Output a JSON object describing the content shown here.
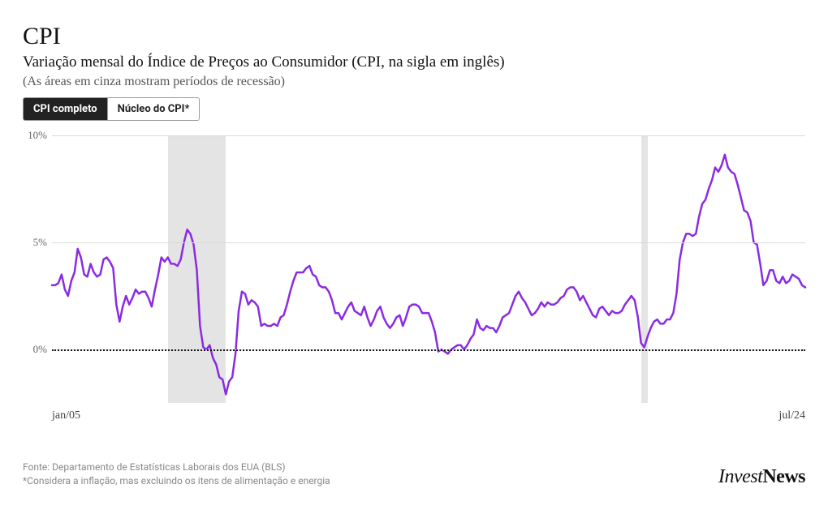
{
  "title": "CPI",
  "subtitle": "Variação mensal do Índice de Preços ao Consumidor (CPI, na sigla em inglês)",
  "note": "(As áreas em cinza mostram períodos de recessão)",
  "tabs": [
    {
      "label": "CPI completo",
      "active": true
    },
    {
      "label": "Núcleo do CPI*",
      "active": false
    }
  ],
  "chart": {
    "type": "line",
    "x_start_label": "jan/05",
    "x_end_label": "jul/24",
    "y_ticks": [
      0,
      5,
      10
    ],
    "y_tick_labels": [
      "0%",
      "5%",
      "10%"
    ],
    "ylim": [
      -2.5,
      10
    ],
    "line_color": "#8a2be2",
    "line_width": 2.5,
    "grid_color": "#d9d9d9",
    "zero_line_color": "#111111",
    "background_color": "#ffffff",
    "recession_color": "#e4e4e4",
    "recessions": [
      {
        "start": 36,
        "end": 54
      },
      {
        "start": 183,
        "end": 185
      }
    ],
    "n_points": 235,
    "values": [
      3.0,
      3.0,
      3.1,
      3.5,
      2.8,
      2.5,
      3.2,
      3.6,
      4.7,
      4.3,
      3.5,
      3.4,
      4.0,
      3.6,
      3.4,
      3.5,
      4.2,
      4.3,
      4.1,
      3.8,
      2.1,
      1.3,
      2.0,
      2.5,
      2.1,
      2.4,
      2.8,
      2.6,
      2.7,
      2.7,
      2.4,
      2.0,
      2.8,
      3.5,
      4.3,
      4.1,
      4.3,
      4.0,
      4.0,
      3.9,
      4.2,
      5.0,
      5.6,
      5.4,
      4.9,
      3.7,
      1.1,
      0.1,
      0.0,
      0.2,
      -0.4,
      -0.7,
      -1.3,
      -1.4,
      -2.1,
      -1.5,
      -1.3,
      -0.2,
      1.8,
      2.7,
      2.6,
      2.1,
      2.3,
      2.2,
      2.0,
      1.1,
      1.2,
      1.1,
      1.1,
      1.2,
      1.1,
      1.5,
      1.6,
      2.1,
      2.7,
      3.2,
      3.6,
      3.6,
      3.6,
      3.8,
      3.9,
      3.5,
      3.4,
      3.0,
      2.9,
      2.9,
      2.7,
      2.3,
      1.7,
      1.7,
      1.4,
      1.7,
      2.0,
      2.2,
      1.8,
      1.7,
      1.6,
      2.0,
      1.5,
      1.1,
      1.4,
      1.8,
      2.0,
      1.5,
      1.2,
      1.0,
      1.2,
      1.5,
      1.6,
      1.1,
      1.5,
      2.0,
      2.1,
      2.1,
      2.0,
      1.7,
      1.7,
      1.7,
      1.3,
      0.8,
      -0.1,
      0.0,
      -0.1,
      -0.2,
      0.0,
      0.1,
      0.2,
      0.2,
      0.0,
      0.2,
      0.5,
      0.7,
      1.4,
      1.0,
      0.9,
      1.1,
      1.0,
      1.0,
      0.8,
      1.1,
      1.5,
      1.6,
      1.7,
      2.1,
      2.5,
      2.7,
      2.4,
      2.2,
      1.9,
      1.6,
      1.7,
      1.9,
      2.2,
      2.0,
      2.2,
      2.1,
      2.1,
      2.2,
      2.4,
      2.5,
      2.8,
      2.9,
      2.9,
      2.7,
      2.3,
      2.5,
      2.2,
      1.9,
      1.6,
      1.5,
      1.9,
      2.0,
      1.8,
      1.6,
      1.8,
      1.7,
      1.7,
      1.8,
      2.1,
      2.3,
      2.5,
      2.3,
      1.5,
      0.3,
      0.1,
      0.6,
      1.0,
      1.3,
      1.4,
      1.2,
      1.2,
      1.4,
      1.4,
      1.7,
      2.6,
      4.2,
      5.0,
      5.4,
      5.4,
      5.3,
      5.4,
      6.2,
      6.8,
      7.0,
      7.5,
      7.9,
      8.5,
      8.3,
      8.6,
      9.1,
      8.5,
      8.3,
      8.2,
      7.7,
      7.1,
      6.5,
      6.4,
      6.0,
      5.0,
      4.9,
      4.0,
      3.0,
      3.2,
      3.7,
      3.7,
      3.2,
      3.1,
      3.4,
      3.1,
      3.2,
      3.5,
      3.4,
      3.3,
      3.0,
      2.9
    ]
  },
  "footer": {
    "source": "Fonte: Departamento de Estatísticas Laborais dos EUA (BLS)",
    "footnote": "*Considera a inflação, mas excluindo os itens de alimentação e energia"
  },
  "brand": {
    "part1": "Invest",
    "part2": "News"
  }
}
